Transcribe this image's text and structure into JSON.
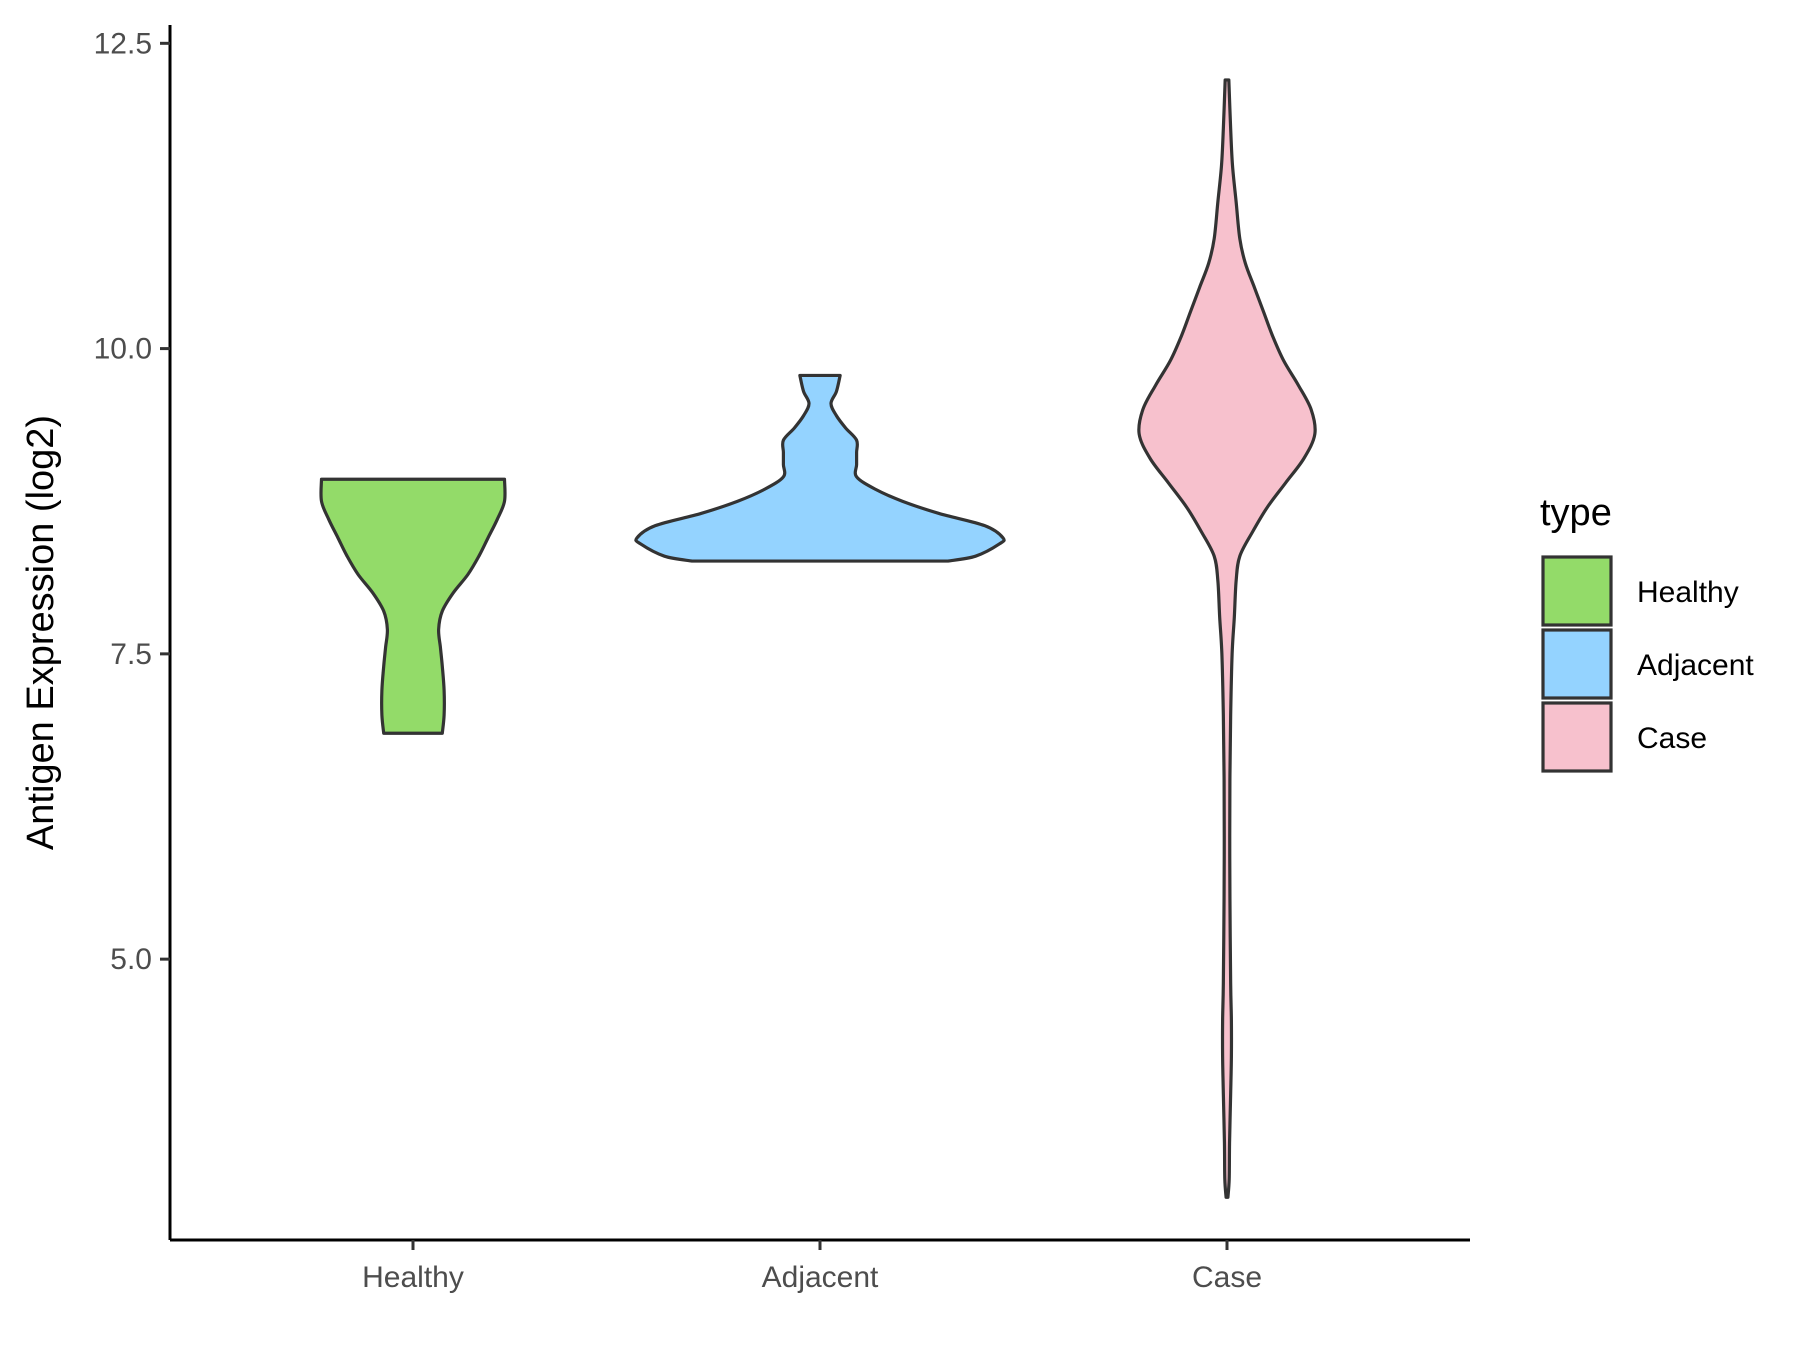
{
  "chart_data": {
    "type": "violin",
    "ylabel": "Antigen Expression (log2)",
    "xlabel": "",
    "ylim": [
      2.7,
      12.65
    ],
    "y_ticks": [
      "5.0",
      "7.5",
      "10.0",
      "12.5"
    ],
    "y_tick_values": [
      5.0,
      7.5,
      10.0,
      12.5
    ],
    "categories": [
      "Healthy",
      "Adjacent",
      "Case"
    ],
    "legend": {
      "title": "type",
      "position": "right",
      "entries": [
        "Healthy",
        "Adjacent",
        "Case"
      ]
    },
    "grid": false,
    "series": [
      {
        "name": "Healthy",
        "color": "#93DB69",
        "min": 6.85,
        "max": 8.93,
        "profile": [
          [
            6.85,
            0.16
          ],
          [
            7.0,
            0.17
          ],
          [
            7.2,
            0.17
          ],
          [
            7.4,
            0.16
          ],
          [
            7.55,
            0.15
          ],
          [
            7.7,
            0.14
          ],
          [
            7.85,
            0.16
          ],
          [
            8.0,
            0.22
          ],
          [
            8.15,
            0.3
          ],
          [
            8.3,
            0.36
          ],
          [
            8.45,
            0.41
          ],
          [
            8.6,
            0.46
          ],
          [
            8.75,
            0.5
          ],
          [
            8.93,
            0.5
          ]
        ]
      },
      {
        "name": "Adjacent",
        "color": "#94D3FF",
        "min": 8.26,
        "max": 9.78,
        "profile": [
          [
            8.26,
            0.7
          ],
          [
            8.3,
            0.85
          ],
          [
            8.4,
            0.98
          ],
          [
            8.45,
            1.0
          ],
          [
            8.55,
            0.9
          ],
          [
            8.65,
            0.65
          ],
          [
            8.75,
            0.45
          ],
          [
            8.85,
            0.3
          ],
          [
            8.95,
            0.2
          ],
          [
            9.05,
            0.2
          ],
          [
            9.15,
            0.2
          ],
          [
            9.25,
            0.2
          ],
          [
            9.35,
            0.14
          ],
          [
            9.45,
            0.09
          ],
          [
            9.55,
            0.06
          ],
          [
            9.65,
            0.09
          ],
          [
            9.78,
            0.11
          ]
        ]
      },
      {
        "name": "Case",
        "color": "#F7C1CD",
        "min": 3.05,
        "max": 12.2,
        "profile": [
          [
            3.05,
            0.005
          ],
          [
            3.2,
            0.012
          ],
          [
            3.5,
            0.014
          ],
          [
            3.9,
            0.02
          ],
          [
            4.2,
            0.024
          ],
          [
            4.5,
            0.024
          ],
          [
            4.8,
            0.02
          ],
          [
            5.5,
            0.016
          ],
          [
            6.0,
            0.015
          ],
          [
            6.5,
            0.016
          ],
          [
            7.0,
            0.02
          ],
          [
            7.5,
            0.028
          ],
          [
            7.8,
            0.04
          ],
          [
            8.1,
            0.05
          ],
          [
            8.3,
            0.07
          ],
          [
            8.5,
            0.14
          ],
          [
            8.7,
            0.22
          ],
          [
            8.9,
            0.32
          ],
          [
            9.1,
            0.42
          ],
          [
            9.3,
            0.48
          ],
          [
            9.5,
            0.46
          ],
          [
            9.7,
            0.39
          ],
          [
            9.9,
            0.31
          ],
          [
            10.1,
            0.25
          ],
          [
            10.3,
            0.2
          ],
          [
            10.5,
            0.15
          ],
          [
            10.7,
            0.1
          ],
          [
            10.9,
            0.07
          ],
          [
            11.2,
            0.05
          ],
          [
            11.5,
            0.03
          ],
          [
            11.8,
            0.02
          ],
          [
            12.2,
            0.01
          ]
        ]
      }
    ]
  }
}
